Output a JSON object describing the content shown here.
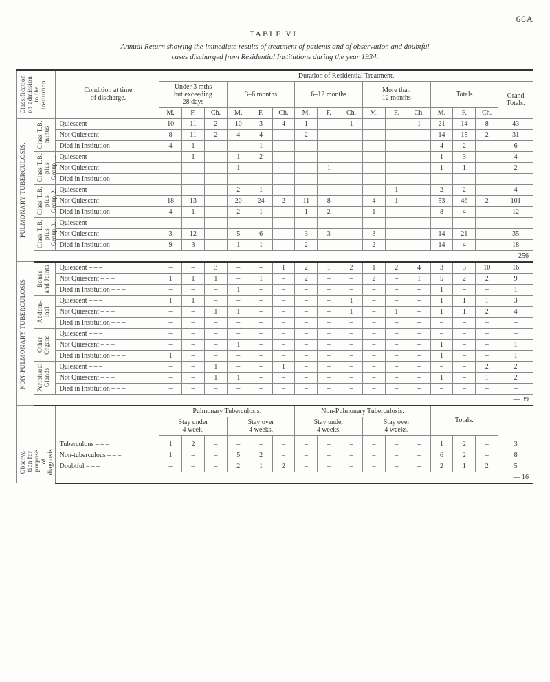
{
  "page_number": "66A",
  "table_title": "TABLE VI.",
  "subtitle_line1": "Annual Return showing the immediate results of treatment of patients and of observation and doubtful",
  "subtitle_line2": "cases discharged from Residential Institutions during the year 1934.",
  "duration_header": "Duration of Residential Treatment.",
  "class_header": "Classification\non admission\nto the\nInstitution.",
  "cond_header": "Condition at time\nof discharge.",
  "groups_header": {
    "under3": "Under 3 mths\nbut exceeding\n28 days",
    "m3_6": "3–6 months",
    "m6_12": "6–12 months",
    "more12": "More than\n12 months",
    "totals": "Totals",
    "grand": "Grand\nTotals."
  },
  "mfc": {
    "m": "M.",
    "f": "F.",
    "ch": "Ch."
  },
  "vert_labels": {
    "pulm": "PULMONARY   TUBERCULOSIS.",
    "nonpulm": "NON-PULMONARY   TUBERCULOSIS.",
    "tb_minus": "Class T.B.\nminus",
    "tb_plus1": "Class T.B.\nplus\nGroup 1.",
    "tb_plus2": "Class T.B.\nplus\nGroup 2.",
    "tb_plus3": "Class T.B.\nplus\nGroup 3.",
    "bones": "Bones\nand Joints",
    "abdom": "Abdom-\ninal",
    "other": "Other\nOrgans",
    "periph": "Peripheral\nGlands",
    "observa": "Observa-\ntion for\npurpose\nof\ndiagnosis."
  },
  "conditions": {
    "q": "Quiescent",
    "nq": "Not Quiescent",
    "d": "Died in Institution",
    "tub": "Tuberculous",
    "nontub": "Non-tuberculous",
    "doubt": "Doubtful"
  },
  "rows": [
    {
      "section": "pulm",
      "sub": "tb_minus",
      "cond": "q",
      "vals": [
        "10",
        "11",
        "2",
        "10",
        "3",
        "4",
        "1",
        "–",
        "1",
        "–",
        "–",
        "1",
        "21",
        "14",
        "8",
        "43"
      ]
    },
    {
      "section": "pulm",
      "sub": "tb_minus",
      "cond": "nq",
      "vals": [
        "8",
        "11",
        "2",
        "4",
        "4",
        "–",
        "2",
        "–",
        "–",
        "–",
        "–",
        "–",
        "14",
        "15",
        "2",
        "31"
      ]
    },
    {
      "section": "pulm",
      "sub": "tb_minus",
      "cond": "d",
      "vals": [
        "4",
        "1",
        "–",
        "–",
        "1",
        "–",
        "–",
        "–",
        "–",
        "–",
        "–",
        "–",
        "4",
        "2",
        "–",
        "6"
      ]
    },
    {
      "section": "pulm",
      "sub": "tb_plus1",
      "cond": "q",
      "vals": [
        "–",
        "1",
        "–",
        "1",
        "2",
        "–",
        "–",
        "–",
        "–",
        "–",
        "–",
        "–",
        "1",
        "3",
        "–",
        "4"
      ]
    },
    {
      "section": "pulm",
      "sub": "tb_plus1",
      "cond": "nq",
      "vals": [
        "–",
        "–",
        "–",
        "1",
        "–",
        "–",
        "–",
        "1",
        "–",
        "–",
        "–",
        "–",
        "1",
        "1",
        "–",
        "2"
      ]
    },
    {
      "section": "pulm",
      "sub": "tb_plus1",
      "cond": "d",
      "vals": [
        "–",
        "–",
        "–",
        "–",
        "–",
        "–",
        "–",
        "–",
        "–",
        "–",
        "–",
        "–",
        "–",
        "–",
        "–",
        "–"
      ]
    },
    {
      "section": "pulm",
      "sub": "tb_plus2",
      "cond": "q",
      "vals": [
        "–",
        "–",
        "–",
        "2",
        "1",
        "–",
        "–",
        "–",
        "–",
        "–",
        "1",
        "–",
        "2",
        "2",
        "–",
        "4"
      ]
    },
    {
      "section": "pulm",
      "sub": "tb_plus2",
      "cond": "nq",
      "vals": [
        "18",
        "13",
        "–",
        "20",
        "24",
        "2",
        "11",
        "8",
        "–",
        "4",
        "1",
        "–",
        "53",
        "46",
        "2",
        "101"
      ]
    },
    {
      "section": "pulm",
      "sub": "tb_plus2",
      "cond": "d",
      "vals": [
        "4",
        "1",
        "–",
        "2",
        "1",
        "–",
        "1",
        "2",
        "–",
        "1",
        "–",
        "–",
        "8",
        "4",
        "–",
        "12"
      ]
    },
    {
      "section": "pulm",
      "sub": "tb_plus3",
      "cond": "q",
      "vals": [
        "–",
        "–",
        "–",
        "–",
        "–",
        "–",
        "–",
        "–",
        "–",
        "–",
        "–",
        "–",
        "–",
        "–",
        "–",
        "–"
      ]
    },
    {
      "section": "pulm",
      "sub": "tb_plus3",
      "cond": "nq",
      "vals": [
        "3",
        "12",
        "–",
        "5",
        "6",
        "–",
        "3",
        "3",
        "–",
        "3",
        "–",
        "–",
        "14",
        "21",
        "–",
        "35"
      ]
    },
    {
      "section": "pulm",
      "sub": "tb_plus3",
      "cond": "d",
      "vals": [
        "9",
        "3",
        "–",
        "1",
        "1",
        "–",
        "2",
        "–",
        "–",
        "2",
        "–",
        "–",
        "14",
        "4",
        "–",
        "18"
      ]
    },
    {
      "section": "nonpulm",
      "sub": "bones",
      "cond": "q",
      "vals": [
        "–",
        "–",
        "3",
        "–",
        "–",
        "1",
        "2",
        "1",
        "2",
        "1",
        "2",
        "4",
        "3",
        "3",
        "10",
        "16"
      ]
    },
    {
      "section": "nonpulm",
      "sub": "bones",
      "cond": "nq",
      "vals": [
        "1",
        "1",
        "1",
        "–",
        "1",
        "–",
        "2",
        "–",
        "–",
        "2",
        "–",
        "1",
        "5",
        "2",
        "2",
        "9"
      ]
    },
    {
      "section": "nonpulm",
      "sub": "bones",
      "cond": "d",
      "vals": [
        "–",
        "–",
        "–",
        "1",
        "–",
        "–",
        "–",
        "–",
        "–",
        "–",
        "–",
        "–",
        "1",
        "–",
        "–",
        "1"
      ]
    },
    {
      "section": "nonpulm",
      "sub": "abdom",
      "cond": "q",
      "vals": [
        "1",
        "1",
        "–",
        "–",
        "–",
        "–",
        "–",
        "–",
        "1",
        "–",
        "–",
        "–",
        "1",
        "1",
        "1",
        "3"
      ]
    },
    {
      "section": "nonpulm",
      "sub": "abdom",
      "cond": "nq",
      "vals": [
        "–",
        "–",
        "1",
        "1",
        "–",
        "–",
        "–",
        "–",
        "1",
        "–",
        "1",
        "–",
        "1",
        "1",
        "2",
        "4"
      ]
    },
    {
      "section": "nonpulm",
      "sub": "abdom",
      "cond": "d",
      "vals": [
        "–",
        "–",
        "–",
        "–",
        "–",
        "–",
        "–",
        "–",
        "–",
        "–",
        "–",
        "–",
        "–",
        "–",
        "–",
        "–"
      ]
    },
    {
      "section": "nonpulm",
      "sub": "other",
      "cond": "q",
      "vals": [
        "–",
        "–",
        "–",
        "–",
        "–",
        "–",
        "–",
        "–",
        "–",
        "–",
        "–",
        "–",
        "–",
        "–",
        "–",
        "–"
      ]
    },
    {
      "section": "nonpulm",
      "sub": "other",
      "cond": "nq",
      "vals": [
        "–",
        "–",
        "–",
        "1",
        "–",
        "–",
        "–",
        "–",
        "–",
        "–",
        "–",
        "–",
        "1",
        "–",
        "–",
        "1"
      ]
    },
    {
      "section": "nonpulm",
      "sub": "other",
      "cond": "d",
      "vals": [
        "1",
        "–",
        "–",
        "–",
        "–",
        "–",
        "–",
        "–",
        "–",
        "–",
        "–",
        "–",
        "1",
        "–",
        "–",
        "1"
      ]
    },
    {
      "section": "nonpulm",
      "sub": "periph",
      "cond": "q",
      "vals": [
        "–",
        "–",
        "1",
        "–",
        "–",
        "1",
        "–",
        "–",
        "–",
        "–",
        "–",
        "–",
        "–",
        "–",
        "2",
        "2"
      ]
    },
    {
      "section": "nonpulm",
      "sub": "periph",
      "cond": "nq",
      "vals": [
        "–",
        "–",
        "1",
        "1",
        "–",
        "–",
        "–",
        "–",
        "–",
        "–",
        "–",
        "–",
        "1",
        "–",
        "1",
        "2"
      ]
    },
    {
      "section": "nonpulm",
      "sub": "periph",
      "cond": "d",
      "vals": [
        "–",
        "–",
        "–",
        "–",
        "–",
        "–",
        "–",
        "–",
        "–",
        "–",
        "–",
        "–",
        "–",
        "–",
        "–",
        "–"
      ]
    }
  ],
  "subtotals": {
    "256": "256",
    "39": "39",
    "16": "16"
  },
  "lower": {
    "pulm_tb": "Pulmonary     Tuberculosis.",
    "nonpulm_tb": "Non-Pulmonary Tuberculosis.",
    "totals": "Totals.",
    "stay_under": "Stay under\n4 week.",
    "stay_over": "Stay over\n4 weeks.",
    "stay_under2": "Stay under\n4 weeks.",
    "stay_over2": "Stay over\n4 weeks."
  },
  "obs_rows": [
    {
      "cond": "tub",
      "vals": [
        "1",
        "2",
        "–",
        "–",
        "–",
        "–",
        "–",
        "–",
        "–",
        "–",
        "–",
        "–",
        "1",
        "2",
        "–",
        "3"
      ]
    },
    {
      "cond": "nontub",
      "vals": [
        "1",
        "–",
        "–",
        "5",
        "2",
        "–",
        "–",
        "–",
        "–",
        "–",
        "–",
        "–",
        "6",
        "2",
        "–",
        "8"
      ]
    },
    {
      "cond": "doubt",
      "vals": [
        "–",
        "–",
        "–",
        "2",
        "1",
        "2",
        "–",
        "–",
        "–",
        "–",
        "–",
        "–",
        "2",
        "1",
        "2",
        "5"
      ]
    }
  ]
}
